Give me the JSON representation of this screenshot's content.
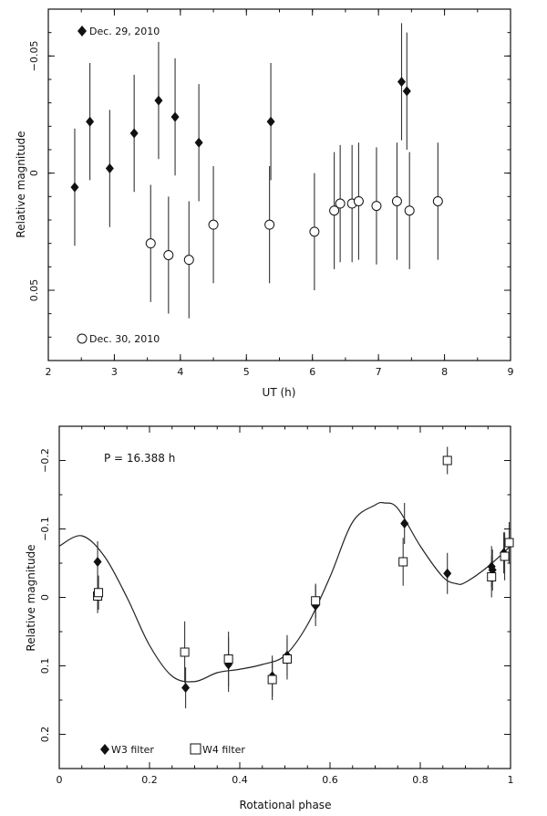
{
  "chart_data": [
    {
      "type": "scatter",
      "title": "",
      "xlabel": "UT (h)",
      "ylabel": "Relative magnitude",
      "xlim": [
        2,
        9
      ],
      "ylim": [
        0.08,
        -0.07
      ],
      "xticks": [
        2,
        3,
        4,
        5,
        6,
        7,
        8,
        9
      ],
      "yticks": [
        -0.05,
        0,
        0.05
      ],
      "ytick_labels": [
        "−0.05",
        "0",
        "0.05"
      ],
      "series": [
        {
          "name": "Dec. 29, 2010",
          "marker": "filled-diamond",
          "points": [
            {
              "x": 2.4,
              "y": 0.006,
              "err": 0.025
            },
            {
              "x": 2.63,
              "y": -0.022,
              "err": 0.025
            },
            {
              "x": 2.93,
              "y": -0.002,
              "err": 0.025
            },
            {
              "x": 3.3,
              "y": -0.017,
              "err": 0.025
            },
            {
              "x": 3.67,
              "y": -0.031,
              "err": 0.025
            },
            {
              "x": 3.92,
              "y": -0.024,
              "err": 0.025
            },
            {
              "x": 4.28,
              "y": -0.013,
              "err": 0.025
            },
            {
              "x": 5.37,
              "y": -0.022,
              "err": 0.025
            },
            {
              "x": 7.35,
              "y": -0.039,
              "err": 0.025
            },
            {
              "x": 7.43,
              "y": -0.035,
              "err": 0.025
            }
          ]
        },
        {
          "name": "Dec. 30, 2010",
          "marker": "open-circle",
          "points": [
            {
              "x": 3.55,
              "y": 0.03,
              "err": 0.025
            },
            {
              "x": 3.82,
              "y": 0.035,
              "err": 0.025
            },
            {
              "x": 4.13,
              "y": 0.037,
              "err": 0.025
            },
            {
              "x": 4.5,
              "y": 0.022,
              "err": 0.025
            },
            {
              "x": 5.35,
              "y": 0.022,
              "err": 0.025
            },
            {
              "x": 6.03,
              "y": 0.025,
              "err": 0.025
            },
            {
              "x": 6.33,
              "y": 0.016,
              "err": 0.025
            },
            {
              "x": 6.42,
              "y": 0.013,
              "err": 0.025
            },
            {
              "x": 6.6,
              "y": 0.013,
              "err": 0.025
            },
            {
              "x": 6.7,
              "y": 0.012,
              "err": 0.025
            },
            {
              "x": 6.97,
              "y": 0.014,
              "err": 0.025
            },
            {
              "x": 7.28,
              "y": 0.012,
              "err": 0.025
            },
            {
              "x": 7.47,
              "y": 0.016,
              "err": 0.025
            },
            {
              "x": 7.9,
              "y": 0.012,
              "err": 0.025
            }
          ]
        }
      ],
      "legend": [
        {
          "label": "Dec. 29, 2010",
          "marker": "filled-diamond",
          "position": "top-left"
        },
        {
          "label": "Dec. 30, 2010",
          "marker": "open-circle",
          "position": "bottom-left"
        }
      ]
    },
    {
      "type": "scatter",
      "title": "",
      "xlabel": "Rotational phase",
      "ylabel": "Relative magnitude",
      "xlim": [
        0,
        1
      ],
      "ylim": [
        0.25,
        -0.25
      ],
      "xticks": [
        0,
        0.2,
        0.4,
        0.6,
        0.8,
        1
      ],
      "xtick_labels": [
        "0",
        "0.2",
        "0.4",
        "0.6",
        "0.8",
        "1"
      ],
      "yticks": [
        -0.2,
        -0.1,
        0,
        0.1,
        0.2
      ],
      "ytick_labels": [
        "−0.2",
        "−0.1",
        "0",
        "0.1",
        "0.2"
      ],
      "annotation": "P = 16.388 h",
      "series": [
        {
          "name": "W3 filter",
          "marker": "filled-diamond",
          "points": [
            {
              "x": 0.085,
              "y": -0.052,
              "err": 0.03
            },
            {
              "x": 0.28,
              "y": 0.132,
              "err": 0.03
            },
            {
              "x": 0.375,
              "y": 0.098,
              "err": 0.04
            },
            {
              "x": 0.472,
              "y": 0.115,
              "err": 0.03
            },
            {
              "x": 0.505,
              "y": 0.085,
              "err": 0.03
            },
            {
              "x": 0.568,
              "y": 0.012,
              "err": 0.03
            },
            {
              "x": 0.765,
              "y": -0.108,
              "err": 0.03
            },
            {
              "x": 0.86,
              "y": -0.035,
              "err": 0.03
            },
            {
              "x": 0.958,
              "y": -0.045,
              "err": 0.03
            },
            {
              "x": 0.96,
              "y": -0.04,
              "err": 0.03
            },
            {
              "x": 0.985,
              "y": -0.065,
              "err": 0.03
            }
          ]
        },
        {
          "name": "W4 filter",
          "marker": "open-square",
          "points": [
            {
              "x": 0.085,
              "y": -0.002,
              "err": 0.025
            },
            {
              "x": 0.087,
              "y": -0.007,
              "err": 0.025
            },
            {
              "x": 0.278,
              "y": 0.08,
              "err": 0.045
            },
            {
              "x": 0.375,
              "y": 0.09,
              "err": 0.04
            },
            {
              "x": 0.472,
              "y": 0.12,
              "err": 0.03
            },
            {
              "x": 0.505,
              "y": 0.09,
              "err": 0.03
            },
            {
              "x": 0.568,
              "y": 0.005,
              "err": 0.025
            },
            {
              "x": 0.762,
              "y": -0.052,
              "err": 0.035
            },
            {
              "x": 0.86,
              "y": -0.2,
              "err": 0.02
            },
            {
              "x": 0.958,
              "y": -0.03,
              "err": 0.03
            },
            {
              "x": 0.987,
              "y": -0.06,
              "err": 0.035
            },
            {
              "x": 0.997,
              "y": -0.08,
              "err": 0.03
            }
          ]
        }
      ],
      "fit_curve": {
        "name": "Lightcurve fit",
        "x": [
          0,
          0.05,
          0.1,
          0.15,
          0.2,
          0.25,
          0.3,
          0.35,
          0.4,
          0.45,
          0.5,
          0.55,
          0.6,
          0.65,
          0.7,
          0.72,
          0.75,
          0.8,
          0.85,
          0.88,
          0.9,
          0.95,
          1
        ],
        "y": [
          -0.075,
          -0.09,
          -0.06,
          0.0,
          0.07,
          0.115,
          0.123,
          0.11,
          0.105,
          0.098,
          0.085,
          0.04,
          -0.03,
          -0.11,
          -0.135,
          -0.138,
          -0.13,
          -0.075,
          -0.03,
          -0.02,
          -0.022,
          -0.045,
          -0.075
        ]
      },
      "legend": [
        {
          "label": "W3 filter",
          "marker": "filled-diamond",
          "position": "bottom-left"
        },
        {
          "label": "W4 filter",
          "marker": "open-square",
          "position": "bottom-left"
        }
      ]
    }
  ]
}
